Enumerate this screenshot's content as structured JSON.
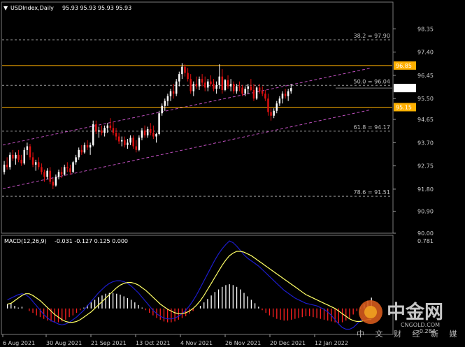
{
  "header": {
    "symbol": "USDIndex,Daily",
    "ohlc": "95.93 95.93 95.93 95.93"
  },
  "macd_header": {
    "label": "MACD(12,26,9)",
    "values": "-0.031 -0.127 0.125 0.000"
  },
  "colors": {
    "background": "#000000",
    "bull": "#ffffff",
    "bear": "#e01010",
    "channel": "#c050c0",
    "horizontal": "#ffb000",
    "fib": "#9a9a9a",
    "signal": "#ffff66",
    "macd_main": "#1c1ccc",
    "hist_pos": "#ffffff",
    "hist_neg": "#ff2020"
  },
  "watermark": {
    "brand": "中金网",
    "site": "CNGOLD.COM",
    "tagline": "中 文 财 经 新 媒 体"
  },
  "chart_data": [
    {
      "type": "candlestick",
      "symbol": "USDIndex",
      "timeframe": "Daily",
      "ylim": [
        90.0,
        98.9
      ],
      "y_ticks": [
        "98.35",
        "97.40",
        "96.45",
        "95.50",
        "94.65",
        "93.70",
        "92.75",
        "91.80",
        "90.90",
        "90.00"
      ],
      "x_ticks": [
        "6 Aug 2021",
        "30 Aug 2021",
        "21 Sep 2021",
        "13 Oct 2021",
        "4 Nov 2021",
        "26 Nov 2021",
        "20 Dec 2021",
        "12 Jan 2022"
      ],
      "price_labels": [
        {
          "text": "96.85",
          "value": 96.85,
          "kind": "horizontal"
        },
        {
          "text": "95.93",
          "value": 95.93,
          "kind": "current"
        },
        {
          "text": "95.15",
          "value": 95.15,
          "kind": "horizontal"
        }
      ],
      "fib_levels": [
        {
          "text": "38.2 = 97.90",
          "value": 97.9
        },
        {
          "text": "50.0 = 96.04",
          "value": 96.04
        },
        {
          "text": "61.8 = 94.17",
          "value": 94.17
        },
        {
          "text": "78.6 = 91.51",
          "value": 91.51
        }
      ],
      "channel_lines": [
        {
          "name": "upper",
          "from": {
            "bar": 0,
            "value": 93.6
          },
          "to": {
            "bar": 128,
            "value": 96.75
          }
        },
        {
          "name": "lower",
          "from": {
            "bar": 0,
            "value": 91.82
          },
          "to": {
            "bar": 128,
            "value": 95.05
          }
        }
      ],
      "candles": [
        [
          92.5,
          92.95,
          92.4,
          92.8
        ],
        [
          92.8,
          93.1,
          92.6,
          92.7
        ],
        [
          92.7,
          93.3,
          92.6,
          93.2
        ],
        [
          93.2,
          93.4,
          92.95,
          93.05
        ],
        [
          93.05,
          93.3,
          92.8,
          93.2
        ],
        [
          93.2,
          93.4,
          92.9,
          93.0
        ],
        [
          93.0,
          93.2,
          92.75,
          92.85
        ],
        [
          92.85,
          93.5,
          92.8,
          93.4
        ],
        [
          93.4,
          93.7,
          93.2,
          93.55
        ],
        [
          93.55,
          93.65,
          93.0,
          93.1
        ],
        [
          93.1,
          93.3,
          92.7,
          92.8
        ],
        [
          92.8,
          93.0,
          92.55,
          92.9
        ],
        [
          92.9,
          93.1,
          92.6,
          92.7
        ],
        [
          92.7,
          92.85,
          92.4,
          92.5
        ],
        [
          92.5,
          92.6,
          92.1,
          92.3
        ],
        [
          92.3,
          92.65,
          92.2,
          92.55
        ],
        [
          92.55,
          92.7,
          92.0,
          92.1
        ],
        [
          92.1,
          92.25,
          91.8,
          91.95
        ],
        [
          91.95,
          92.4,
          91.9,
          92.3
        ],
        [
          92.3,
          92.6,
          92.2,
          92.5
        ],
        [
          92.5,
          92.7,
          92.25,
          92.4
        ],
        [
          92.4,
          92.8,
          92.35,
          92.7
        ],
        [
          92.7,
          92.9,
          92.5,
          92.65
        ],
        [
          92.65,
          92.8,
          92.4,
          92.5
        ],
        [
          92.5,
          92.95,
          92.45,
          92.9
        ],
        [
          92.9,
          93.2,
          92.8,
          93.1
        ],
        [
          93.1,
          93.5,
          93.0,
          93.4
        ],
        [
          93.4,
          93.6,
          93.2,
          93.3
        ],
        [
          93.3,
          93.7,
          93.25,
          93.6
        ],
        [
          93.6,
          93.8,
          93.4,
          93.5
        ],
        [
          93.5,
          93.7,
          93.2,
          93.6
        ],
        [
          93.6,
          94.6,
          93.55,
          94.45
        ],
        [
          94.45,
          94.6,
          94.05,
          94.15
        ],
        [
          94.15,
          94.35,
          93.9,
          94.2
        ],
        [
          94.2,
          94.4,
          94.0,
          94.1
        ],
        [
          94.1,
          94.4,
          93.95,
          94.3
        ],
        [
          94.3,
          94.5,
          94.1,
          94.4
        ],
        [
          94.4,
          94.7,
          94.2,
          94.3
        ],
        [
          94.3,
          94.55,
          94.0,
          94.1
        ],
        [
          94.1,
          94.3,
          93.8,
          93.95
        ],
        [
          93.95,
          94.1,
          93.65,
          93.75
        ],
        [
          93.75,
          93.95,
          93.55,
          93.8
        ],
        [
          93.8,
          93.95,
          93.5,
          93.6
        ],
        [
          93.6,
          93.85,
          93.45,
          93.7
        ],
        [
          93.7,
          94.0,
          93.6,
          93.9
        ],
        [
          93.9,
          94.0,
          93.45,
          93.55
        ],
        [
          93.55,
          93.8,
          93.3,
          93.4
        ],
        [
          93.4,
          94.0,
          93.35,
          93.9
        ],
        [
          93.9,
          94.3,
          93.8,
          94.2
        ],
        [
          94.2,
          94.4,
          93.9,
          94.0
        ],
        [
          94.0,
          94.35,
          93.9,
          94.25
        ],
        [
          94.25,
          94.5,
          94.0,
          94.1
        ],
        [
          94.1,
          94.4,
          93.85,
          93.95
        ],
        [
          93.95,
          94.1,
          93.7,
          94.05
        ],
        [
          94.05,
          95.0,
          94.0,
          94.9
        ],
        [
          94.9,
          95.3,
          94.8,
          95.2
        ],
        [
          95.2,
          95.5,
          95.0,
          95.4
        ],
        [
          95.4,
          95.7,
          95.2,
          95.6
        ],
        [
          95.6,
          95.9,
          95.4,
          95.8
        ],
        [
          95.8,
          96.1,
          95.5,
          95.7
        ],
        [
          95.7,
          96.3,
          95.6,
          96.2
        ],
        [
          96.2,
          96.6,
          96.0,
          96.5
        ],
        [
          96.5,
          96.95,
          96.3,
          96.8
        ],
        [
          96.8,
          96.9,
          96.4,
          96.55
        ],
        [
          96.55,
          96.75,
          96.2,
          96.3
        ],
        [
          96.3,
          96.5,
          95.7,
          95.8
        ],
        [
          95.8,
          96.2,
          95.6,
          96.1
        ],
        [
          96.1,
          96.4,
          95.9,
          96.0
        ],
        [
          96.0,
          96.4,
          95.85,
          96.3
        ],
        [
          96.3,
          96.5,
          96.0,
          96.15
        ],
        [
          96.15,
          96.4,
          95.8,
          95.95
        ],
        [
          95.95,
          96.3,
          95.8,
          96.2
        ],
        [
          96.2,
          96.45,
          96.0,
          96.1
        ],
        [
          96.1,
          96.3,
          95.8,
          95.9
        ],
        [
          95.9,
          96.2,
          95.7,
          96.05
        ],
        [
          96.05,
          96.9,
          95.9,
          96.4
        ],
        [
          96.4,
          96.7,
          95.7,
          95.85
        ],
        [
          95.85,
          96.3,
          95.8,
          96.25
        ],
        [
          96.25,
          96.45,
          95.9,
          96.0
        ],
        [
          96.0,
          96.3,
          95.8,
          96.1
        ],
        [
          96.1,
          96.2,
          95.7,
          95.8
        ],
        [
          95.8,
          96.1,
          95.7,
          96.0
        ],
        [
          96.0,
          96.2,
          95.8,
          95.95
        ],
        [
          95.95,
          96.05,
          95.6,
          95.7
        ],
        [
          95.7,
          96.0,
          95.6,
          95.9
        ],
        [
          95.9,
          96.1,
          95.7,
          96.0
        ],
        [
          96.0,
          96.3,
          95.8,
          95.85
        ],
        [
          95.85,
          96.1,
          95.4,
          95.5
        ],
        [
          95.5,
          96.0,
          95.45,
          95.95
        ],
        [
          95.95,
          96.1,
          95.7,
          95.8
        ],
        [
          95.8,
          96.0,
          95.6,
          95.7
        ],
        [
          95.7,
          95.85,
          95.4,
          95.5
        ],
        [
          95.5,
          95.7,
          94.8,
          94.95
        ],
        [
          94.95,
          95.1,
          94.6,
          94.8
        ],
        [
          94.8,
          95.1,
          94.7,
          95.0
        ],
        [
          95.0,
          95.4,
          94.9,
          95.3
        ],
        [
          95.3,
          95.6,
          95.2,
          95.5
        ],
        [
          95.5,
          95.8,
          95.3,
          95.7
        ],
        [
          95.7,
          95.9,
          95.5,
          95.6
        ],
        [
          95.6,
          95.9,
          95.4,
          95.8
        ],
        [
          95.8,
          96.1,
          95.7,
          95.93
        ]
      ]
    },
    {
      "type": "macd",
      "name": "MACD(12,26,9)",
      "main": -0.031,
      "signal": -0.127,
      "hist": 0.125,
      "extra": 0.0,
      "ylim": [
        -0.284,
        0.781
      ],
      "y_ticks": [
        "0.781",
        "-0.284"
      ],
      "histogram": [
        0.05,
        0.06,
        0.03,
        0.01,
        0.02,
        0.0,
        -0.03,
        -0.05,
        -0.08,
        -0.1,
        -0.12,
        -0.14,
        -0.15,
        -0.16,
        -0.16,
        -0.15,
        -0.13,
        -0.1,
        -0.08,
        -0.05,
        -0.02,
        0.01,
        0.04,
        0.07,
        0.1,
        0.13,
        0.15,
        0.17,
        0.18,
        0.18,
        0.17,
        0.16,
        0.14,
        0.12,
        0.1,
        0.07,
        0.04,
        0.01,
        -0.02,
        -0.05,
        -0.08,
        -0.11,
        -0.13,
        -0.15,
        -0.16,
        -0.16,
        -0.15,
        -0.13,
        -0.11,
        -0.09,
        -0.06,
        -0.03,
        0.0,
        0.03,
        0.07,
        0.11,
        0.15,
        0.19,
        0.22,
        0.25,
        0.27,
        0.28,
        0.27,
        0.25,
        0.22,
        0.18,
        0.14,
        0.1,
        0.06,
        0.02,
        -0.02,
        -0.05,
        -0.08,
        -0.1,
        -0.12,
        -0.13,
        -0.14,
        -0.14,
        -0.13,
        -0.12,
        -0.11,
        -0.1,
        -0.09,
        -0.09,
        -0.1,
        -0.11,
        -0.12,
        -0.13,
        -0.14,
        -0.15,
        -0.16,
        -0.17,
        -0.16,
        -0.14,
        -0.11,
        -0.07,
        -0.03,
        0.01,
        0.05,
        0.09,
        0.125
      ],
      "macd_line": [
        0.1,
        0.12,
        0.14,
        0.16,
        0.17,
        0.16,
        0.13,
        0.08,
        0.03,
        -0.02,
        -0.07,
        -0.11,
        -0.14,
        -0.16,
        -0.18,
        -0.19,
        -0.18,
        -0.16,
        -0.13,
        -0.1,
        -0.06,
        -0.02,
        0.03,
        0.08,
        0.13,
        0.18,
        0.22,
        0.26,
        0.29,
        0.31,
        0.32,
        0.32,
        0.31,
        0.29,
        0.26,
        0.22,
        0.18,
        0.13,
        0.08,
        0.03,
        -0.02,
        -0.06,
        -0.09,
        -0.11,
        -0.12,
        -0.12,
        -0.11,
        -0.09,
        -0.06,
        -0.02,
        0.03,
        0.09,
        0.16,
        0.24,
        0.32,
        0.4,
        0.48,
        0.56,
        0.63,
        0.69,
        0.74,
        0.78,
        0.76,
        0.72,
        0.67,
        0.62,
        0.58,
        0.55,
        0.52,
        0.49,
        0.45,
        0.41,
        0.37,
        0.33,
        0.29,
        0.25,
        0.21,
        0.18,
        0.15,
        0.12,
        0.1,
        0.08,
        0.06,
        0.05,
        0.04,
        0.03,
        0.01,
        -0.01,
        -0.04,
        -0.08,
        -0.13,
        -0.18,
        -0.22,
        -0.24,
        -0.24,
        -0.22,
        -0.18,
        -0.14,
        -0.1,
        -0.06,
        -0.031
      ],
      "signal_line": [
        0.05,
        0.06,
        0.09,
        0.12,
        0.15,
        0.17,
        0.17,
        0.15,
        0.12,
        0.09,
        0.05,
        0.01,
        -0.03,
        -0.07,
        -0.1,
        -0.13,
        -0.15,
        -0.16,
        -0.16,
        -0.15,
        -0.13,
        -0.1,
        -0.07,
        -0.04,
        0.0,
        0.04,
        0.08,
        0.12,
        0.16,
        0.2,
        0.24,
        0.27,
        0.29,
        0.3,
        0.3,
        0.29,
        0.27,
        0.24,
        0.21,
        0.17,
        0.13,
        0.09,
        0.05,
        0.02,
        -0.01,
        -0.03,
        -0.05,
        -0.06,
        -0.06,
        -0.05,
        -0.03,
        0.0,
        0.04,
        0.09,
        0.15,
        0.22,
        0.29,
        0.36,
        0.43,
        0.5,
        0.56,
        0.61,
        0.64,
        0.66,
        0.66,
        0.65,
        0.63,
        0.61,
        0.58,
        0.55,
        0.52,
        0.49,
        0.46,
        0.43,
        0.4,
        0.37,
        0.34,
        0.31,
        0.28,
        0.25,
        0.22,
        0.19,
        0.16,
        0.14,
        0.12,
        0.1,
        0.08,
        0.06,
        0.04,
        0.02,
        0.0,
        -0.03,
        -0.06,
        -0.09,
        -0.12,
        -0.14,
        -0.15,
        -0.15,
        -0.14,
        -0.13,
        -0.127
      ]
    }
  ]
}
